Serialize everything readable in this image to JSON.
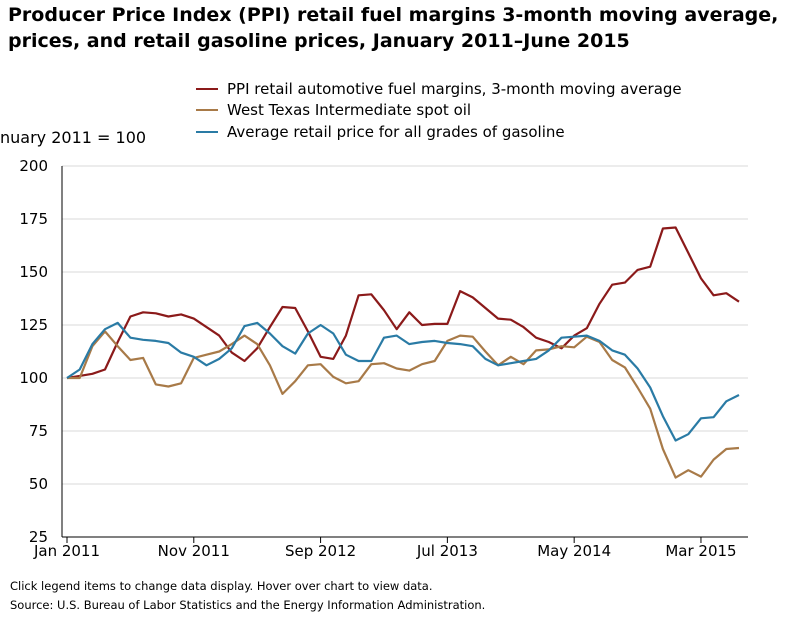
{
  "title": {
    "line1": "Producer Price Index (PPI) retail fuel margins 3-month moving average,",
    "line2": "prices, and retail gasoline prices, January 2011–June 2015"
  },
  "unit_label": "nuary 2011 = 100",
  "footer": {
    "note": "Click legend items to change data display. Hover over chart to view data.",
    "source": "Source: U.S. Bureau of Labor Statistics and the Energy Information Administration."
  },
  "chart_data": {
    "type": "line",
    "title": "Producer Price Index (PPI) retail fuel margins 3-month moving average, prices, and retail gasoline prices, January 2011–June 2015",
    "ylabel": "nuary 2011 = 100",
    "xlabel": "",
    "ylim": [
      25,
      200
    ],
    "yticks": [
      25,
      50,
      75,
      100,
      125,
      150,
      175,
      200
    ],
    "xticks": [
      {
        "index": 0,
        "label": "Jan 2011"
      },
      {
        "index": 10,
        "label": "Nov 2011"
      },
      {
        "index": 20,
        "label": "Sep 2012"
      },
      {
        "index": 30,
        "label": "Jul 2013"
      },
      {
        "index": 40,
        "label": "May 2014"
      },
      {
        "index": 50,
        "label": "Mar 2015"
      }
    ],
    "grid": "horizontal",
    "legend_position": "top",
    "x": [
      "2011-01",
      "2011-02",
      "2011-03",
      "2011-04",
      "2011-05",
      "2011-06",
      "2011-07",
      "2011-08",
      "2011-09",
      "2011-10",
      "2011-11",
      "2011-12",
      "2012-01",
      "2012-02",
      "2012-03",
      "2012-04",
      "2012-05",
      "2012-06",
      "2012-07",
      "2012-08",
      "2012-09",
      "2012-10",
      "2012-11",
      "2012-12",
      "2013-01",
      "2013-02",
      "2013-03",
      "2013-04",
      "2013-05",
      "2013-06",
      "2013-07",
      "2013-08",
      "2013-09",
      "2013-10",
      "2013-11",
      "2013-12",
      "2014-01",
      "2014-02",
      "2014-03",
      "2014-04",
      "2014-05",
      "2014-06",
      "2014-07",
      "2014-08",
      "2014-09",
      "2014-10",
      "2014-11",
      "2014-12",
      "2015-01",
      "2015-02",
      "2015-03",
      "2015-04",
      "2015-05",
      "2015-06"
    ],
    "series": [
      {
        "name": "PPI retail automotive fuel margins, 3-month moving average",
        "color": "#8b1a1a",
        "values": [
          100,
          101,
          102,
          104,
          117,
          129,
          131,
          130.5,
          129,
          130,
          128,
          124,
          120,
          112,
          108,
          114,
          124,
          133.5,
          133,
          122,
          110,
          109,
          120,
          139,
          139.5,
          132,
          123,
          131,
          125,
          125.5,
          125.5,
          141,
          138,
          133,
          128,
          127.5,
          124,
          119,
          117,
          114,
          120,
          123.5,
          135,
          144,
          145,
          151,
          152.5,
          170.5,
          171,
          159,
          147,
          139,
          140,
          136
        ]
      },
      {
        "name": "West Texas Intermediate spot oil",
        "color": "#a87a48",
        "values": [
          100,
          100,
          115,
          122,
          115,
          108.5,
          109.5,
          97,
          96,
          97.5,
          109.5,
          111,
          112.5,
          116,
          120,
          116,
          106,
          92.5,
          98.5,
          106,
          106.5,
          100.5,
          97.5,
          98.5,
          106.5,
          107,
          104.5,
          103.5,
          106.5,
          108,
          117.5,
          120,
          119.5,
          112.5,
          106,
          110,
          106.5,
          113,
          113.5,
          115,
          114.5,
          119.5,
          117,
          108.5,
          105,
          95.5,
          85.5,
          66.5,
          53,
          56.5,
          53.5,
          61.5,
          66.5,
          67
        ]
      },
      {
        "name": "Average retail price for all grades of gasoline",
        "color": "#2a7ba5",
        "values": [
          100,
          104,
          116,
          123,
          126,
          119,
          118,
          117.5,
          116.5,
          112,
          110,
          106,
          109,
          114,
          124.5,
          126,
          121,
          115,
          111.5,
          121,
          125,
          121,
          111,
          108,
          108,
          119,
          120,
          116,
          117,
          117.5,
          116.5,
          116,
          115,
          109,
          106,
          107,
          108,
          109,
          113,
          119,
          119.5,
          120,
          117.5,
          113,
          111,
          104.5,
          95.5,
          82,
          70.5,
          73.5,
          81,
          81.5,
          89,
          92
        ]
      }
    ]
  }
}
